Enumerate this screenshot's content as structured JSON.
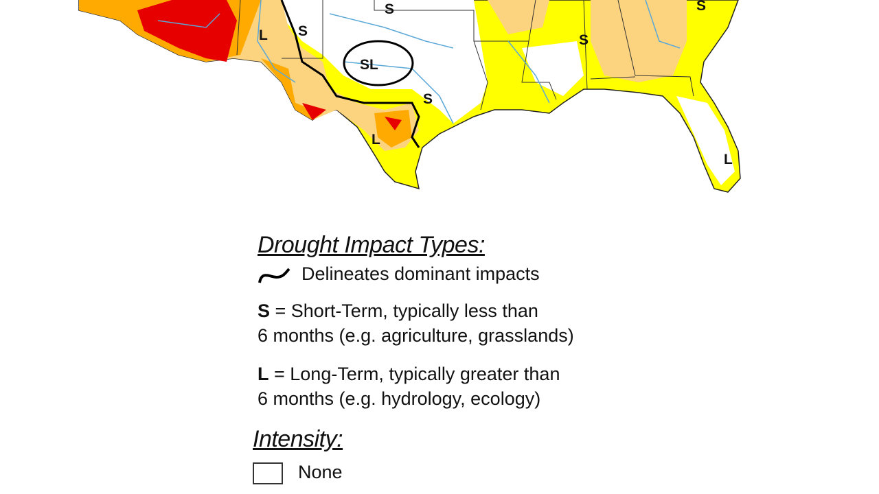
{
  "map": {
    "impact_labels": [
      "S",
      "S",
      "L",
      "S",
      "SL",
      "S",
      "S",
      "L",
      "L"
    ],
    "colors": {
      "none": "#ffffff",
      "d0": "#ffff00",
      "d1": "#fcd37f",
      "d2": "#ffaa00",
      "d3": "#e60000",
      "water": "#5aa8d8"
    }
  },
  "legend": {
    "impact_title": "Drought Impact Types:",
    "delineate_text": "Delineates dominant impacts",
    "short_key": "S",
    "short_line1": " = Short-Term, typically less than",
    "short_line2": "6 months (e.g. agriculture, grasslands)",
    "long_key": "L",
    "long_line1": " = Long-Term, typically greater than",
    "long_line2": "6 months (e.g. hydrology, ecology)",
    "intensity_title": "Intensity:",
    "intensity_items": [
      {
        "label": "None",
        "color": "#ffffff"
      }
    ]
  }
}
